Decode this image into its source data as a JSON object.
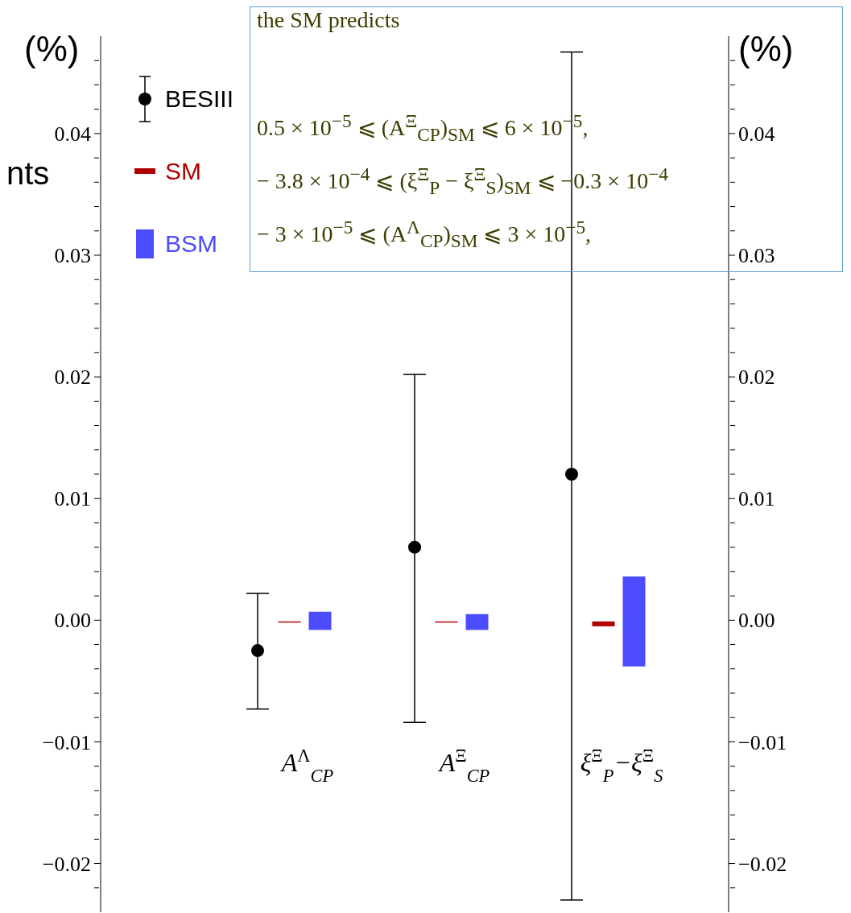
{
  "chart_data": {
    "type": "bar",
    "ylabel": "(%)",
    "y2label": "(%)",
    "categories": [
      "A$^{Λ}$$_{CP}$",
      "A$^{Ξ}$$_{CP}$",
      "ξ$^{Ξ}$$_{P}$−ξ$^{Ξ}$$_{S}$"
    ],
    "series": [
      {
        "name": "BESIII",
        "type": "scatter",
        "color": "#000000",
        "marker": "circle",
        "values": [
          -0.0025,
          0.006,
          0.012
        ],
        "errors": [
          [
            -0.0073,
            0.0022
          ],
          [
            -0.0084,
            0.0202
          ],
          [
            -0.023,
            0.0467
          ]
        ]
      },
      {
        "name": "SM",
        "color": "#b00000",
        "base": [
          -0.0002,
          -0.0002,
          -0.0005
        ],
        "values": [
          0.0001,
          0.0001,
          0.0004
        ]
      },
      {
        "name": "BSM",
        "color": "#4b4bff",
        "base": [
          -0.0008,
          -0.0008,
          -0.0038
        ],
        "values": [
          0.0015,
          0.0013,
          0.0074
        ]
      }
    ],
    "ylim": [
      -0.024,
      0.048
    ],
    "yticks": [
      {
        "value": -0.02,
        "label": "−0.02"
      },
      {
        "value": -0.01,
        "label": "−0.01"
      },
      {
        "value": 0,
        "label": "0.00"
      },
      0.01,
      0.02,
      0.03,
      0.04
    ],
    "y2lim": [
      -0.024,
      0.048
    ],
    "y2ticks": [
      {
        "value": -0.02,
        "label": "−0.02"
      },
      {
        "value": -0.01,
        "label": "−0.01"
      },
      {
        "value": 0,
        "label": "0.00"
      },
      0.01,
      0.02,
      0.03,
      0.04
    ],
    "legend": "top left",
    "annotations": [
      "nts",
      "the SM predicts",
      "0.5 × 10$^{−5}$ ⩽ (A$^{Ξ}$$_{CP}$)$_{SM}$ ⩽ 6 × 10$^{−5}$,",
      "− 3.8 × 10$^{−4}$ ⩽ (ξ$^{Ξ}$$_{P}$ − ξ$^{Ξ}$$_{S}$)$_{SM}$ ⩽ −0.3 × 10$^{−4}$",
      "− 3 × 10$^{−5}$ ⩽ (A$^{Λ}$$_{CP}$)$_{SM}$ ⩽ 3 × 10$^{−5}$,"
    ]
  }
}
